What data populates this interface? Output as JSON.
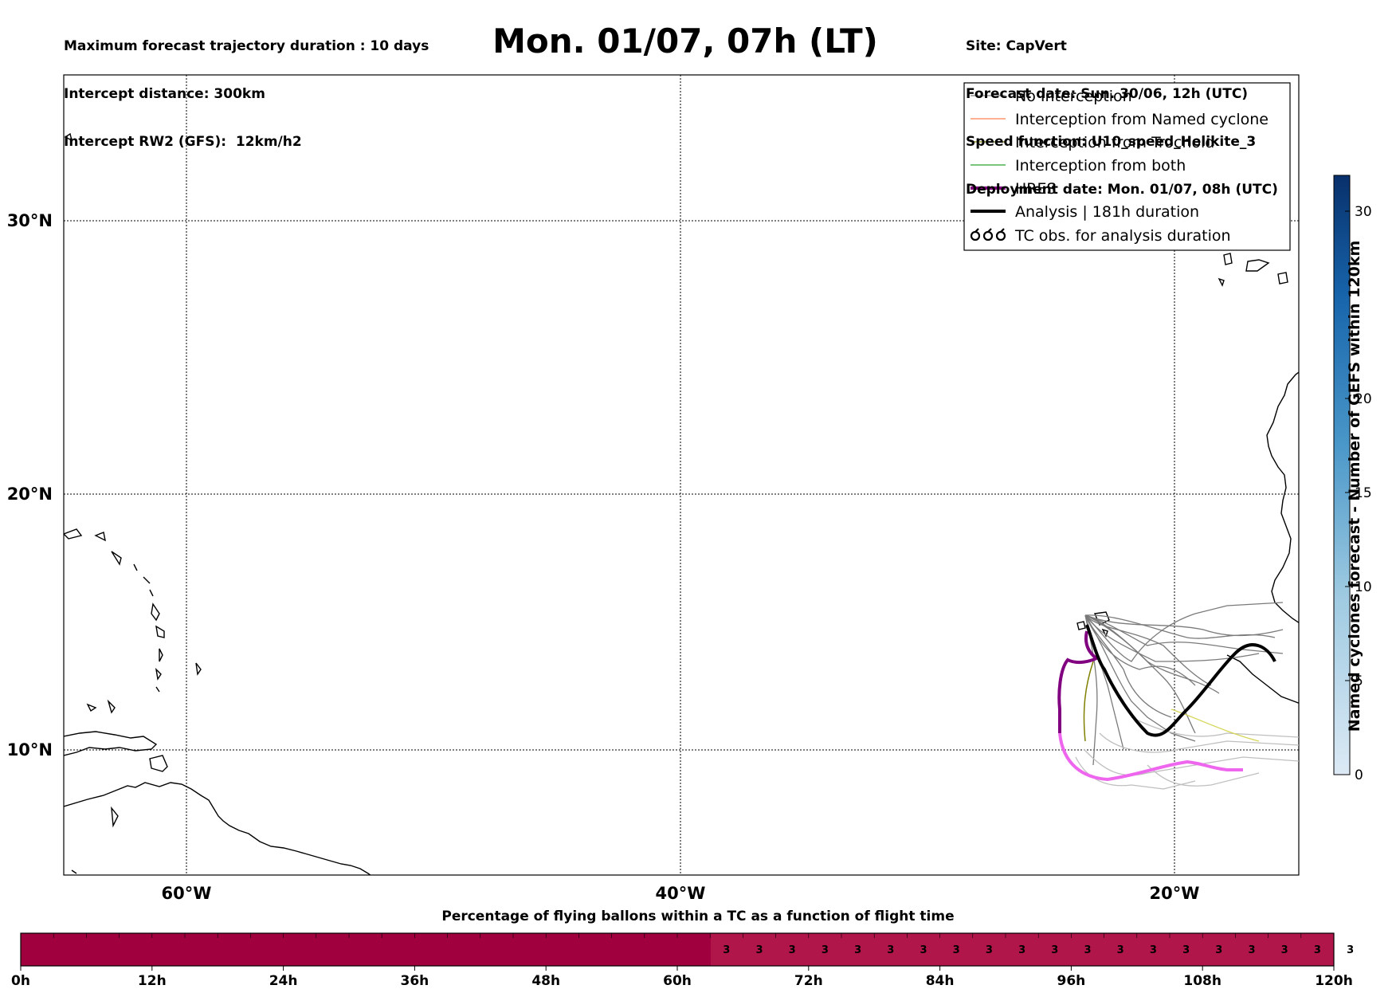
{
  "header": {
    "title": "Mon. 01/07, 07h (LT)",
    "left_lines": [
      "Maximum forecast trajectory duration : 10 days",
      "Intercept distance: 300km",
      "Intercept RW2 (GFS):  12km/h2"
    ],
    "right_lines": [
      "Site: CapVert",
      "Forecast date: Sun. 30/06, 12h (UTC)",
      "Speed function: U10_speed_Helikite_3",
      "Deployment date: Mon. 01/07, 08h (UTC)"
    ]
  },
  "map": {
    "lat_labels": [
      "30°N",
      "20°N",
      "10°N"
    ],
    "lon_labels": [
      "60°W",
      "40°W",
      "20°W"
    ]
  },
  "legend": {
    "items": [
      {
        "label": "No Interception",
        "color": "#808080"
      },
      {
        "label": "Interception from Named cyclone",
        "color": "#ff7f50"
      },
      {
        "label": "Interception from Trochoid",
        "color": "#808000"
      },
      {
        "label": "Interception from both",
        "color": "#2ca02c"
      },
      {
        "label": "HRES",
        "color": "#800080"
      },
      {
        "label": "Analysis | 181h duration",
        "color": "#000000"
      },
      {
        "label": "TC obs. for analysis duration",
        "icon": "cyclone-symbol-icon"
      }
    ]
  },
  "colorbar": {
    "title": "Named cyclones forecast - Number of GEFS within 120km",
    "ticks": [
      "0",
      "5",
      "10",
      "15",
      "20",
      "30"
    ]
  },
  "timebar": {
    "title": "Percentage of flying ballons within a TC as a function of flight time",
    "ticks": [
      "0h",
      "12h",
      "24h",
      "36h",
      "48h",
      "60h",
      "72h",
      "84h",
      "96h",
      "108h",
      "120h"
    ],
    "cell_values": [
      "3",
      "3",
      "3",
      "3",
      "3",
      "3",
      "3",
      "3",
      "3",
      "3",
      "3",
      "3",
      "3",
      "3",
      "3",
      "3",
      "3",
      "3",
      "3",
      "3"
    ]
  },
  "colors": {
    "timebar_base": "#a0003e",
    "timebar_pct": "#b0164a",
    "colorbar_low": "#dce9f5",
    "colorbar_high": "#08306b",
    "hres_light": "#ee66ee"
  }
}
